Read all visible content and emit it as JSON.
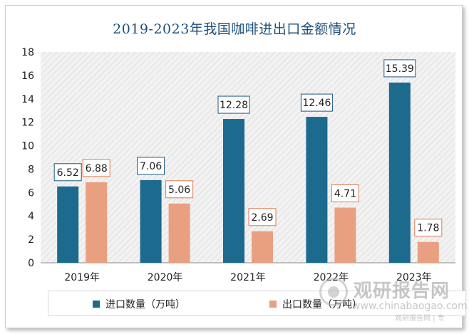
{
  "chart_data": {
    "type": "bar",
    "title": "2019-2023年我国咖啡进出口金额情况",
    "categories": [
      "2019年",
      "2020年",
      "2021年",
      "2022年",
      "2023年"
    ],
    "series": [
      {
        "name": "进口数量（万吨）",
        "values": [
          6.52,
          7.06,
          12.28,
          12.46,
          15.39
        ],
        "color": "#1c6a8e",
        "label_border": "#1c5a80"
      },
      {
        "name": "出口数量（万吨）",
        "values": [
          6.88,
          5.06,
          2.69,
          4.71,
          1.78
        ],
        "color": "#e8a080",
        "label_border": "#e07a50"
      }
    ],
    "ylim": [
      0,
      18
    ],
    "yticks": [
      "0",
      "2",
      "4",
      "6",
      "8",
      "10",
      "12",
      "14",
      "16",
      "18"
    ],
    "data_labels": [
      [
        "6.52",
        "7.06",
        "12.28",
        "12.46",
        "15.39"
      ],
      [
        "6.88",
        "5.06",
        "2.69",
        "4.71",
        "1.78"
      ]
    ],
    "grid": false,
    "plot_background": "hatched-gray",
    "legend_position": "bottom"
  },
  "watermark": {
    "text_cn": "观研报告网",
    "url": "www.chinabaogao.com",
    "sub": "观研报告网 | 专"
  }
}
